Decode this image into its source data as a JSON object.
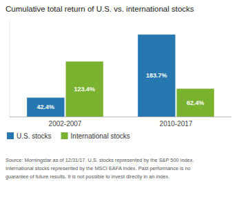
{
  "chart_data": {
    "type": "bar",
    "title": "Cumulative total return of U.S. vs. international stocks",
    "categories": [
      "2002-2007",
      "2010-2017"
    ],
    "series": [
      {
        "name": "U.S. stocks",
        "color": "#2778b0",
        "values": [
          42.4,
          183.7
        ],
        "value_labels": [
          "42.4%",
          "183.7%"
        ]
      },
      {
        "name": "International stocks",
        "color": "#7ab230",
        "values": [
          123.4,
          62.4
        ],
        "value_labels": [
          "123.4%",
          "62.4%"
        ]
      }
    ],
    "ylim": [
      0,
      215
    ],
    "grid": false,
    "legend": "lower left",
    "data_labels": true,
    "tick_labels": "x",
    "annotations": [
      "Source: Morningstar as of 12/31/17. U.S. stocks represented by the S&P 500 index.",
      "International stocks represented by the MSCI EAFA Index. Past performance is no",
      "guarantee of future results. It is not possible to invest directly in an index."
    ]
  }
}
